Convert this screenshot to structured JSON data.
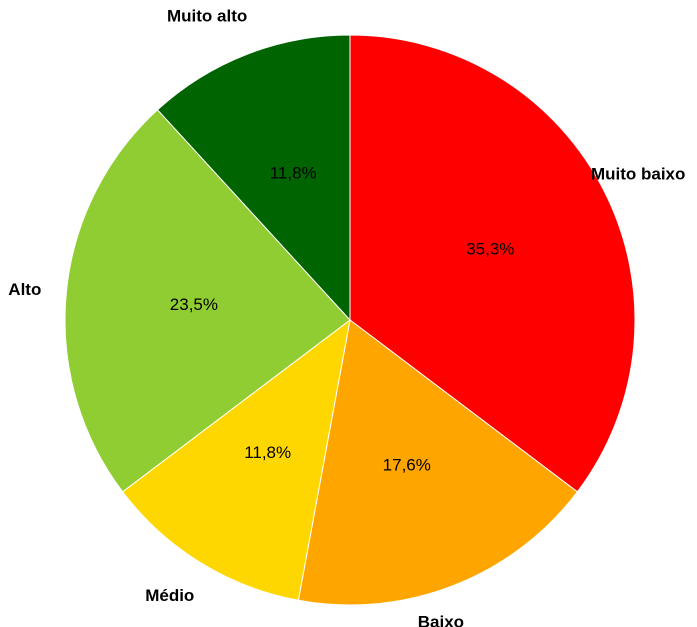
{
  "chart_data": {
    "type": "pie",
    "start_angle_deg": 0,
    "direction": "clockwise",
    "slices": [
      {
        "label": "Muito baixo",
        "value": 35.3,
        "display": "35,3%",
        "color": "#ff0000"
      },
      {
        "label": "Baixo",
        "value": 17.6,
        "display": "17,6%",
        "color": "#ffa500"
      },
      {
        "label": "Médio",
        "value": 11.8,
        "display": "11,8%",
        "color": "#ffd700"
      },
      {
        "label": "Alto",
        "value": 23.5,
        "display": "23,5%",
        "color": "#90cd32"
      },
      {
        "label": "Muito alto",
        "value": 11.8,
        "display": "11,8%",
        "color": "#006400"
      }
    ],
    "legend": "none"
  }
}
